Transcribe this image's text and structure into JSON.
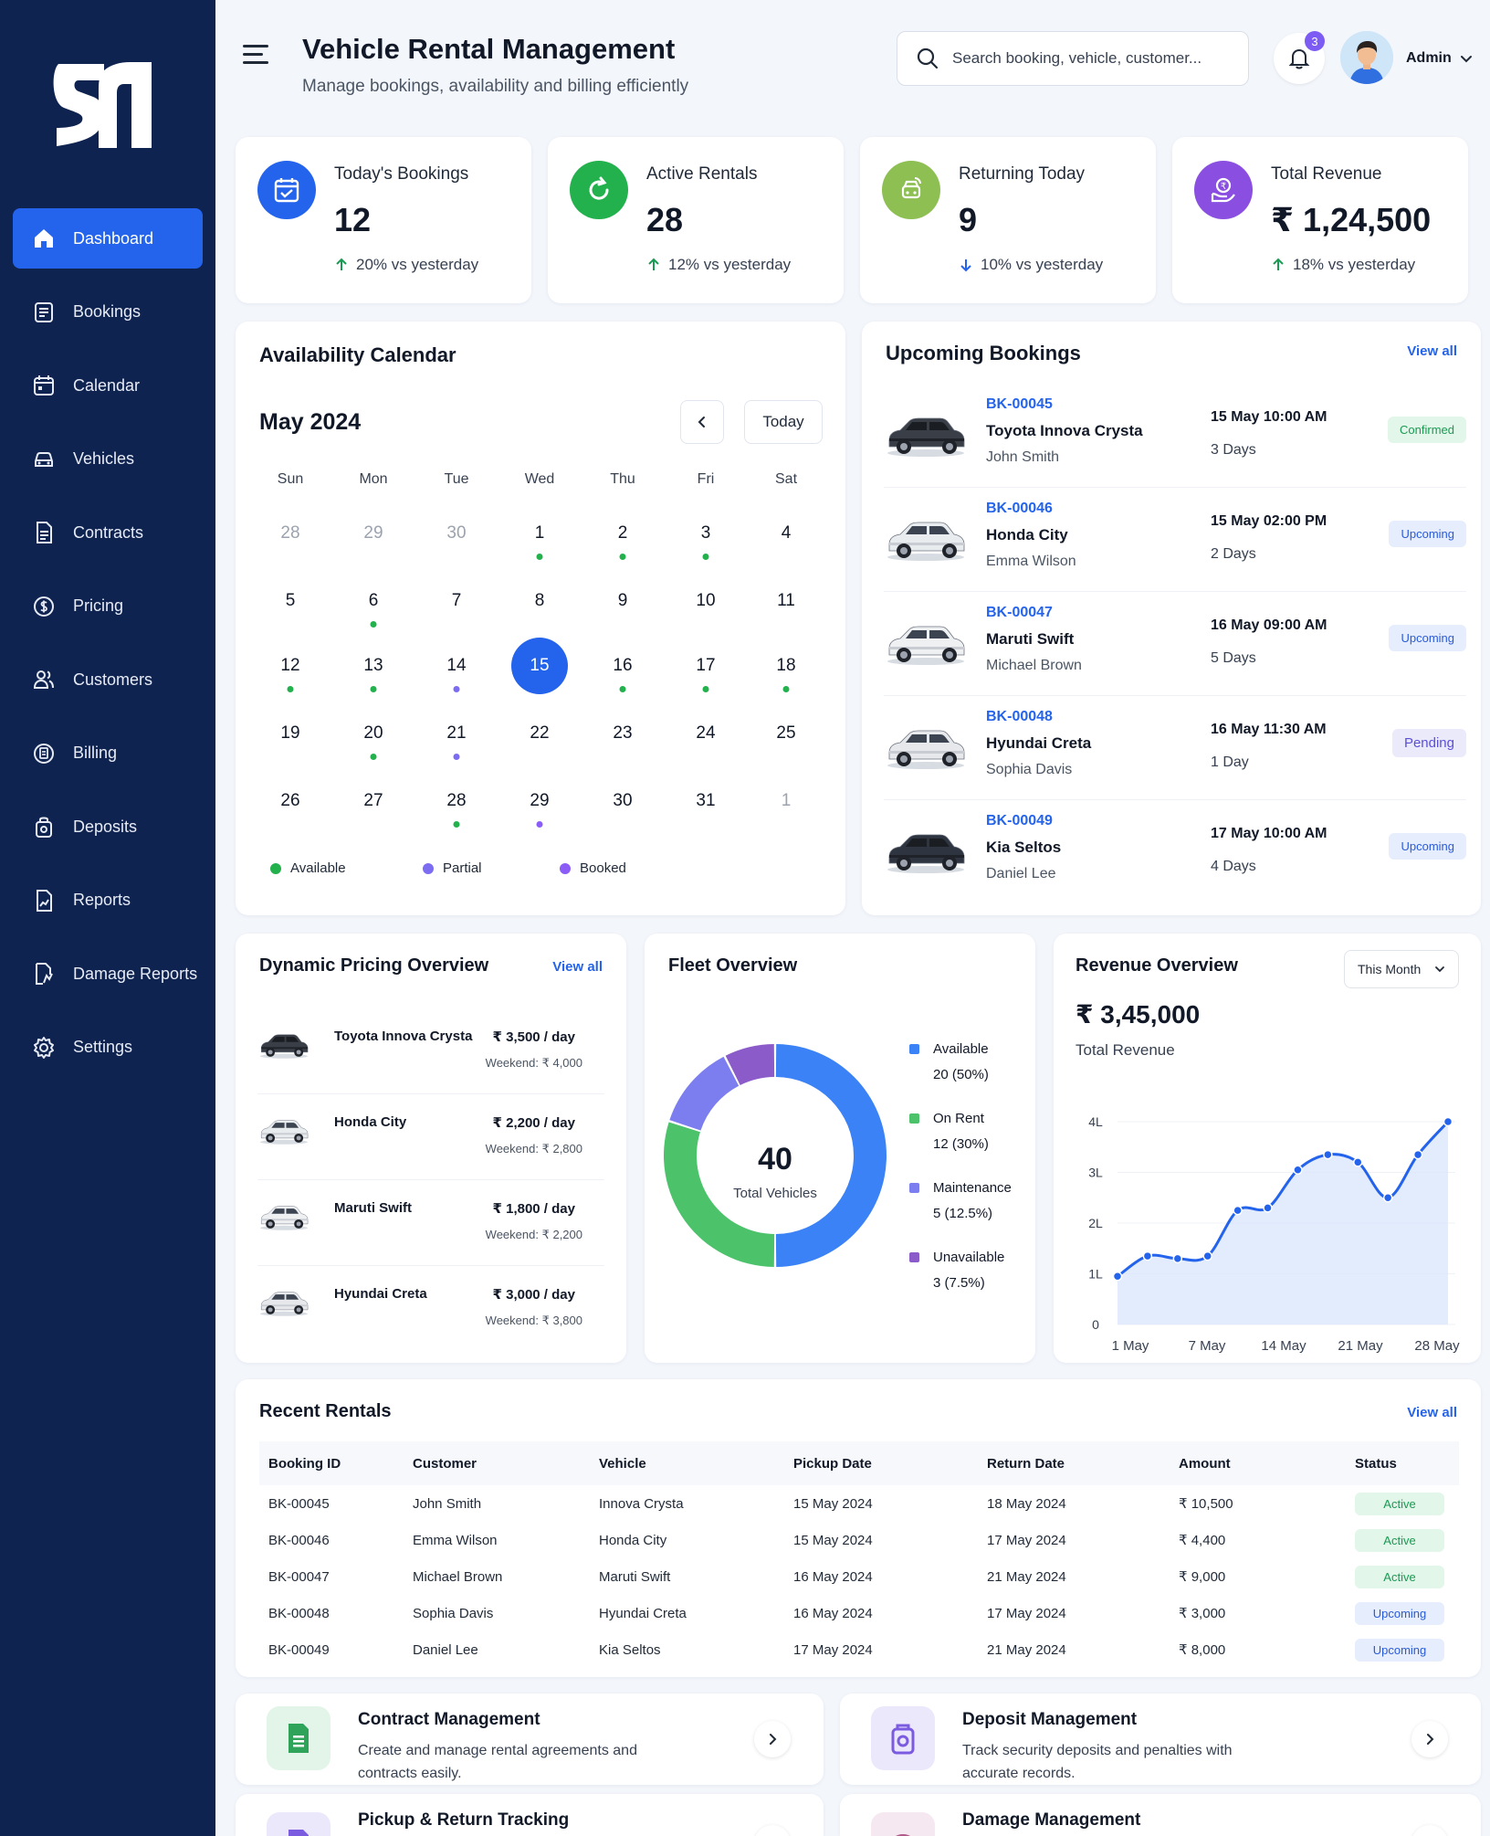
{
  "app": {
    "title": "Vehicle Rental Management",
    "subtitle": "Manage bookings, availability and billing efficiently"
  },
  "search": {
    "placeholder": "Search booking, vehicle, customer..."
  },
  "notifications": {
    "count": "3"
  },
  "user": {
    "name": "Admin"
  },
  "sidebar": {
    "items": [
      {
        "label": "Dashboard",
        "icon": "home-icon"
      },
      {
        "label": "Bookings",
        "icon": "bookings-icon"
      },
      {
        "label": "Calendar",
        "icon": "calendar-icon"
      },
      {
        "label": "Vehicles",
        "icon": "car-icon"
      },
      {
        "label": "Contracts",
        "icon": "document-icon"
      },
      {
        "label": "Pricing",
        "icon": "dollar-icon"
      },
      {
        "label": "Customers",
        "icon": "users-icon"
      },
      {
        "label": "Billing",
        "icon": "billing-icon"
      },
      {
        "label": "Deposits",
        "icon": "deposit-icon"
      },
      {
        "label": "Reports",
        "icon": "reports-icon"
      },
      {
        "label": "Damage Reports",
        "icon": "damage-icon"
      },
      {
        "label": "Settings",
        "icon": "gear-icon"
      }
    ]
  },
  "stats": [
    {
      "label": "Today's Bookings",
      "value": "12",
      "delta": "20% vs yesterday",
      "trend": "up",
      "color": "#2463eb"
    },
    {
      "label": "Active Rentals",
      "value": "28",
      "delta": "12% vs yesterday",
      "trend": "up",
      "color": "#22b14c"
    },
    {
      "label": "Returning Today",
      "value": "9",
      "delta": "10% vs yesterday",
      "trend": "down",
      "color": "#8dbf52"
    },
    {
      "label": "Total Revenue",
      "value": "₹ 1,24,500",
      "delta": "18% vs yesterday",
      "trend": "up",
      "color": "#8a4fe0"
    }
  ],
  "calendar": {
    "title": "Availability Calendar",
    "month": "May 2024",
    "today_label": "Today",
    "weekdays": [
      "Sun",
      "Mon",
      "Tue",
      "Wed",
      "Thu",
      "Fri",
      "Sat"
    ],
    "weeks": [
      [
        {
          "d": "28",
          "m": true
        },
        {
          "d": "29",
          "m": true
        },
        {
          "d": "30",
          "m": true
        },
        {
          "d": "1",
          "s": "available"
        },
        {
          "d": "2",
          "s": "available"
        },
        {
          "d": "3",
          "s": "available"
        },
        {
          "d": "4"
        }
      ],
      [
        {
          "d": "5"
        },
        {
          "d": "6",
          "s": "available"
        },
        {
          "d": "7"
        },
        {
          "d": "8"
        },
        {
          "d": "9"
        },
        {
          "d": "10"
        },
        {
          "d": "11"
        }
      ],
      [
        {
          "d": "12",
          "s": "available"
        },
        {
          "d": "13",
          "s": "available"
        },
        {
          "d": "14",
          "s": "partial"
        },
        {
          "d": "15",
          "sel": true
        },
        {
          "d": "16",
          "s": "available"
        },
        {
          "d": "17",
          "s": "available"
        },
        {
          "d": "18",
          "s": "available"
        }
      ],
      [
        {
          "d": "19"
        },
        {
          "d": "20",
          "s": "available"
        },
        {
          "d": "21",
          "s": "partial"
        },
        {
          "d": "22"
        },
        {
          "d": "23"
        },
        {
          "d": "24"
        },
        {
          "d": "25"
        }
      ],
      [
        {
          "d": "26"
        },
        {
          "d": "27"
        },
        {
          "d": "28",
          "s": "available"
        },
        {
          "d": "29",
          "s": "booked"
        },
        {
          "d": "30"
        },
        {
          "d": "31"
        },
        {
          "d": "1",
          "m": true
        }
      ]
    ],
    "legend": [
      {
        "label": "Available",
        "color": "#22b14c"
      },
      {
        "label": "Partial",
        "color": "#7c6cf2"
      },
      {
        "label": "Booked",
        "color": "#8b5cf6"
      }
    ]
  },
  "upcoming": {
    "title": "Upcoming Bookings",
    "view_all": "View all",
    "items": [
      {
        "id": "BK-00045",
        "car": "Toyota Innova Crysta",
        "customer": "John Smith",
        "date": "15 May 10:00 AM",
        "duration": "3 Days",
        "status": "Confirmed",
        "kind": "confirmed",
        "car_color": "#3a3f47"
      },
      {
        "id": "BK-00046",
        "car": "Honda City",
        "customer": "Emma Wilson",
        "date": "15 May 02:00 PM",
        "duration": "2 Days",
        "status": "Upcoming",
        "kind": "upcoming",
        "car_color": "#e9ecef"
      },
      {
        "id": "BK-00047",
        "car": "Maruti Swift",
        "customer": "Michael Brown",
        "date": "16 May 09:00 AM",
        "duration": "5 Days",
        "status": "Upcoming",
        "kind": "upcoming",
        "car_color": "#eef0f2"
      },
      {
        "id": "BK-00048",
        "car": "Hyundai Creta",
        "customer": "Sophia Davis",
        "date": "16 May 11:30 AM",
        "duration": "1 Day",
        "status": "Pending",
        "kind": "pending",
        "car_color": "#e6e8eb"
      },
      {
        "id": "BK-00049",
        "car": "Kia Seltos",
        "customer": "Daniel Lee",
        "date": "17 May 10:00 AM",
        "duration": "4 Days",
        "status": "Upcoming",
        "kind": "upcoming",
        "car_color": "#2e3440"
      }
    ]
  },
  "pricing": {
    "title": "Dynamic Pricing Overview",
    "view_all": "View all",
    "items": [
      {
        "car": "Toyota Innova Crysta",
        "price": "₹ 3,500 / day",
        "weekend": "Weekend: ₹ 4,000",
        "car_color": "#3a3f47"
      },
      {
        "car": "Honda City",
        "price": "₹ 2,200 / day",
        "weekend": "Weekend: ₹ 2,800",
        "car_color": "#e9ecef"
      },
      {
        "car": "Maruti Swift",
        "price": "₹ 1,800 / day",
        "weekend": "Weekend: ₹ 2,200",
        "car_color": "#eef0f2"
      },
      {
        "car": "Hyundai Creta",
        "price": "₹ 3,000 / day",
        "weekend": "Weekend: ₹ 3,800",
        "car_color": "#e6e8eb"
      }
    ]
  },
  "fleet": {
    "title": "Fleet Overview",
    "total": "40",
    "total_label": "Total Vehicles",
    "segments": [
      {
        "label": "Available",
        "value_text": "20 (50%)",
        "value": 20,
        "color": "#3b82f6"
      },
      {
        "label": "On Rent",
        "value_text": "12 (30%)",
        "value": 12,
        "color": "#4cc26b"
      },
      {
        "label": "Maintenance",
        "value_text": "5 (12.5%)",
        "value": 5,
        "color": "#7c7ef0"
      },
      {
        "label": "Unavailable",
        "value_text": "3 (7.5%)",
        "value": 3,
        "color": "#8b5cc9"
      }
    ]
  },
  "revenue": {
    "title": "Revenue Overview",
    "period": "This Month",
    "total": "₹ 3,45,000",
    "total_label": "Total Revenue"
  },
  "chart_data": {
    "type": "area",
    "title": "Revenue Overview",
    "x": [
      1,
      2,
      3,
      4,
      5,
      6,
      7,
      8,
      9,
      10,
      11,
      12
    ],
    "values": [
      0.95,
      1.35,
      1.3,
      1.35,
      2.25,
      2.3,
      3.05,
      3.35,
      3.2,
      2.5,
      3.35,
      4.0
    ],
    "xticks": [
      "1 May",
      "7 May",
      "14 May",
      "21 May",
      "28 May"
    ],
    "yticks": [
      "0",
      "1L",
      "2L",
      "3L",
      "4L"
    ],
    "ylim": [
      0,
      4
    ],
    "line_color": "#2463eb",
    "fill_color": "#dbe7fd",
    "grid": true
  },
  "recent": {
    "title": "Recent Rentals",
    "view_all": "View all",
    "columns": [
      "Booking ID",
      "Customer",
      "Vehicle",
      "Pickup Date",
      "Return Date",
      "Amount",
      "Status"
    ],
    "rows": [
      {
        "id": "BK-00045",
        "customer": "John Smith",
        "vehicle": "Innova Crysta",
        "pickup": "15 May 2024",
        "ret": "18 May 2024",
        "amount": "₹ 10,500",
        "status": "Active",
        "kind": "active"
      },
      {
        "id": "BK-00046",
        "customer": "Emma Wilson",
        "vehicle": "Honda City",
        "pickup": "15 May 2024",
        "ret": "17 May 2024",
        "amount": "₹ 4,400",
        "status": "Active",
        "kind": "active"
      },
      {
        "id": "BK-00047",
        "customer": "Michael Brown",
        "vehicle": "Maruti Swift",
        "pickup": "16 May 2024",
        "ret": "21 May 2024",
        "amount": "₹ 9,000",
        "status": "Active",
        "kind": "active"
      },
      {
        "id": "BK-00048",
        "customer": "Sophia Davis",
        "vehicle": "Hyundai Creta",
        "pickup": "16 May 2024",
        "ret": "17 May 2024",
        "amount": "₹ 3,000",
        "status": "Upcoming",
        "kind": "upcoming"
      },
      {
        "id": "BK-00049",
        "customer": "Daniel Lee",
        "vehicle": "Kia Seltos",
        "pickup": "17 May 2024",
        "ret": "21 May 2024",
        "amount": "₹ 8,000",
        "status": "Upcoming",
        "kind": "upcoming"
      }
    ]
  },
  "features": [
    {
      "title": "Contract Management",
      "desc": "Create and manage rental agreements and contracts easily.",
      "icon": "contract-icon",
      "bg": "#e2f5e8",
      "fg": "#2fa35a"
    },
    {
      "title": "Deposit Management",
      "desc": "Track security deposits and penalties with accurate records.",
      "icon": "deposit-icon",
      "bg": "#ece8fb",
      "fg": "#7b5ce0"
    },
    {
      "title": "Pickup & Return Tracking",
      "desc": "",
      "icon": "pickup-icon",
      "bg": "#ece8fb",
      "fg": "#7b5ce0"
    },
    {
      "title": "Damage Management",
      "desc": "",
      "icon": "damage-icon",
      "bg": "#f6e8f0",
      "fg": "#b25a8a"
    }
  ]
}
